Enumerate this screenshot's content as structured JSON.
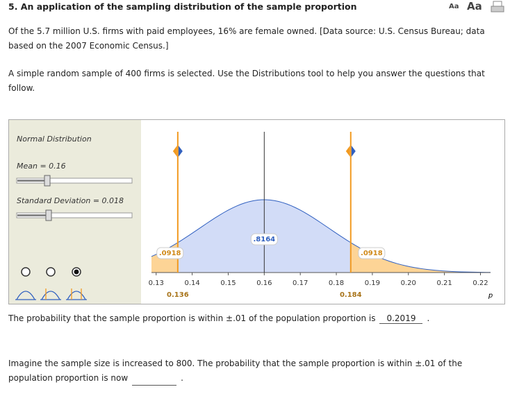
{
  "header": {
    "title": "5. An application of the sampling distribution of the sample proportion",
    "font_small": "Aa",
    "font_large": "Aa"
  },
  "paragraphs": [
    "Of the 5.7 million U.S. firms with paid employees, 16% are female owned. [Data source: U.S. Census Bureau; data based on the 2007 Economic Census.]",
    "A simple random sample of 400 firms is selected. Use the Distributions tool to help you answer the questions that follow."
  ],
  "chart_data": {
    "type": "normal",
    "panel_title": "Normal Distribution",
    "mean_label": "Mean = 0.16",
    "mean": 0.16,
    "sd_label": "Standard Deviation = 0.018",
    "sd": 0.018,
    "cutoffs": [
      0.136,
      0.184
    ],
    "values": [
      0.0918,
      0.8164,
      0.0918
    ],
    "value_labels": [
      ".0918",
      ".8164",
      ".0918"
    ],
    "colors": [
      "#fdd496",
      "#d2dcf7",
      "#fdd496"
    ],
    "xlim": [
      0.1287,
      0.2228
    ],
    "ylim": [
      0,
      25
    ],
    "xticks": [
      0.13,
      0.14,
      0.15,
      0.16,
      0.17,
      0.18,
      0.19,
      {
        "value": 0.2,
        "label": "0.20"
      },
      0.21,
      0.22
    ],
    "xlabel": "p"
  },
  "questions": [
    {
      "text": "The probability that the sample proportion is within ±.01 of the population proportion is",
      "answer": "0.2019",
      "end": "."
    },
    {
      "text": "Imagine the sample size is increased to 800. The probability that the sample proportion is within ±.01 of the population proportion is now",
      "end": "."
    }
  ]
}
